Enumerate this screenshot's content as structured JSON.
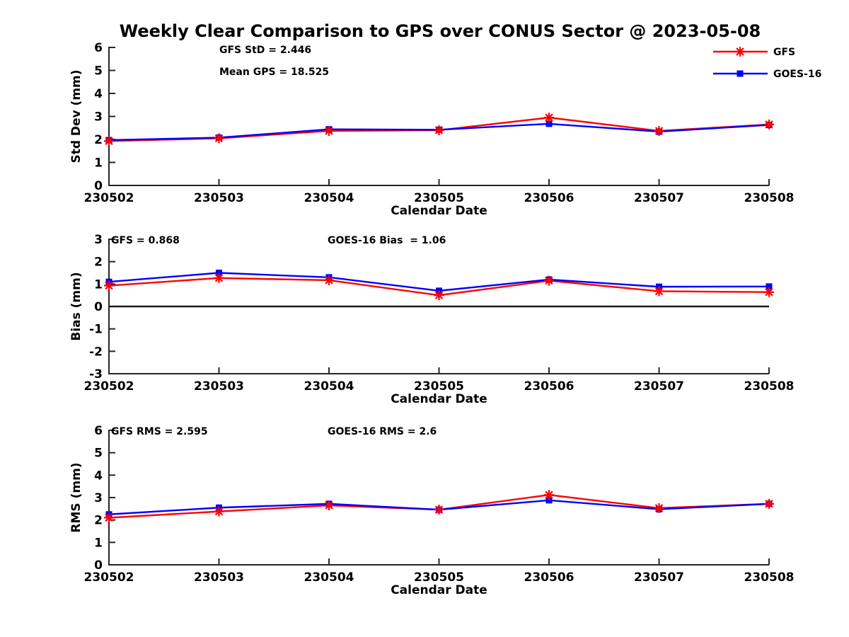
{
  "title": "Weekly Clear Comparison to GPS over CONUS Sector @ 2023-05-08",
  "colors": {
    "gfs": "#ff0000",
    "goes16": "#0000ff",
    "axis": "#262626",
    "zero_line": "#1a1a1a",
    "text": "#000000",
    "background": "#ffffff"
  },
  "legend": {
    "items": [
      {
        "label": "GFS",
        "color": "#ff0000",
        "marker": "asterisk"
      },
      {
        "label": "GOES-16",
        "color": "#0000ff",
        "marker": "square"
      }
    ]
  },
  "chart_data": [
    {
      "type": "line",
      "name": "std-dev",
      "ylabel": "Std Dev (mm)",
      "xlabel": "Calendar Date",
      "ylim": [
        0,
        6
      ],
      "yticks": [
        0,
        1,
        2,
        3,
        4,
        5,
        6
      ],
      "zero_line": false,
      "categories": [
        "230502",
        "230503",
        "230504",
        "230505",
        "230506",
        "230507",
        "230508"
      ],
      "annotations": [
        "GFS StD = 2.446",
        "Mean GPS = 18.525"
      ],
      "series": [
        {
          "name": "GFS",
          "marker": "asterisk",
          "color": "#ff0000",
          "values": [
            1.93,
            2.05,
            2.37,
            2.4,
            2.95,
            2.37,
            2.65
          ]
        },
        {
          "name": "GOES-16",
          "marker": "square",
          "color": "#0000ff",
          "values": [
            1.97,
            2.08,
            2.44,
            2.42,
            2.68,
            2.34,
            2.63
          ]
        }
      ]
    },
    {
      "type": "line",
      "name": "bias",
      "ylabel": "Bias (mm)",
      "xlabel": "Calendar Date",
      "ylim": [
        -3,
        3
      ],
      "yticks": [
        -3,
        -2,
        -1,
        0,
        1,
        2,
        3
      ],
      "zero_line": true,
      "categories": [
        "230502",
        "230503",
        "230504",
        "230505",
        "230506",
        "230507",
        "230508"
      ],
      "annotations": [
        "GFS = 0.868",
        "GOES-16 Bias  = 1.06"
      ],
      "series": [
        {
          "name": "GFS",
          "marker": "asterisk",
          "color": "#ff0000",
          "values": [
            0.93,
            1.27,
            1.17,
            0.5,
            1.15,
            0.68,
            0.64
          ]
        },
        {
          "name": "GOES-16",
          "marker": "square",
          "color": "#0000ff",
          "values": [
            1.1,
            1.5,
            1.3,
            0.7,
            1.2,
            0.88,
            0.89
          ]
        }
      ]
    },
    {
      "type": "line",
      "name": "rms",
      "ylabel": "RMS (mm)",
      "xlabel": "Calendar Date",
      "ylim": [
        0,
        6
      ],
      "yticks": [
        0,
        1,
        2,
        3,
        4,
        5,
        6
      ],
      "zero_line": false,
      "categories": [
        "230502",
        "230503",
        "230504",
        "230505",
        "230506",
        "230507",
        "230508"
      ],
      "annotations": [
        "GFS RMS = 2.595",
        "GOES-16 RMS = 2.6"
      ],
      "series": [
        {
          "name": "GFS",
          "marker": "asterisk",
          "color": "#ff0000",
          "values": [
            2.1,
            2.38,
            2.65,
            2.46,
            3.12,
            2.53,
            2.72
          ]
        },
        {
          "name": "GOES-16",
          "marker": "square",
          "color": "#0000ff",
          "values": [
            2.25,
            2.55,
            2.72,
            2.46,
            2.88,
            2.48,
            2.72
          ]
        }
      ]
    }
  ]
}
